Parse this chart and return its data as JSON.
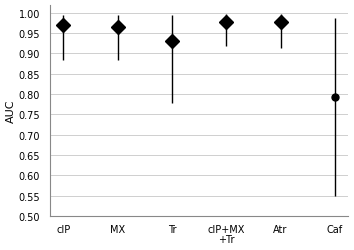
{
  "categories": [
    "cIP",
    "MX",
    "Tr",
    "cIP+MX\n+Tr",
    "Atr",
    "Caf"
  ],
  "values": [
    0.97,
    0.965,
    0.93,
    0.977,
    0.978,
    0.793
  ],
  "lower_errors": [
    0.087,
    0.082,
    0.153,
    0.06,
    0.065,
    0.243
  ],
  "upper_errors": [
    0.025,
    0.03,
    0.065,
    0.02,
    0.018,
    0.195
  ],
  "marker_styles": [
    "D",
    "D",
    "D",
    "D",
    "D",
    "o"
  ],
  "marker_sizes": [
    7,
    7,
    7,
    7,
    7,
    5
  ],
  "marker_color": "black",
  "line_color": "black",
  "line_width": 1.0,
  "ylabel": "AUC",
  "ylim": [
    0.5,
    1.02
  ],
  "yticks": [
    0.5,
    0.55,
    0.6,
    0.65,
    0.7,
    0.75,
    0.8,
    0.85,
    0.9,
    0.95,
    1.0
  ],
  "grid_color": "#c8c8c8",
  "background_color": "#ffffff",
  "tick_fontsize": 7,
  "label_fontsize": 8
}
